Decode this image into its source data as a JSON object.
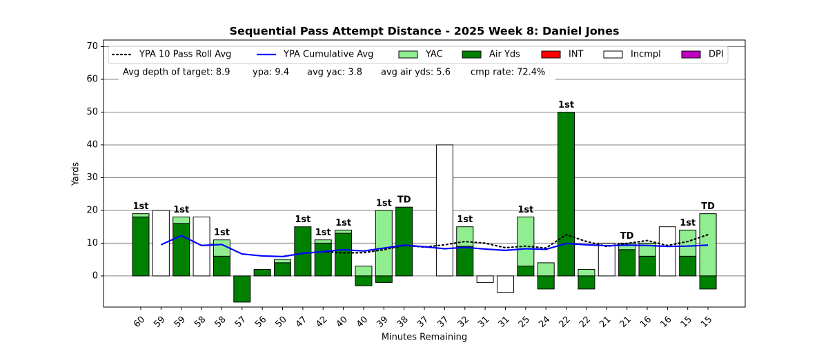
{
  "chart_data": {
    "type": "bar",
    "title": "Sequential Pass Attempt Distance - 2025 Week 8: Daniel Jones",
    "xlabel": "Minutes Remaining",
    "ylabel": "Yards",
    "categories": [
      "60",
      "59",
      "59",
      "58",
      "58",
      "57",
      "56",
      "50",
      "47",
      "42",
      "40",
      "40",
      "39",
      "38",
      "37",
      "37",
      "32",
      "31",
      "31",
      "25",
      "24",
      "22",
      "22",
      "21",
      "21",
      "16",
      "16",
      "15",
      "15"
    ],
    "series": [
      {
        "name": "YAC",
        "color": "#90ee90",
        "values": [
          1,
          null,
          2,
          null,
          5,
          0,
          null,
          1,
          null,
          1,
          1,
          3,
          20,
          null,
          null,
          null,
          6,
          null,
          null,
          15,
          4,
          null,
          2,
          null,
          2,
          4,
          null,
          8,
          19
        ]
      },
      {
        "name": "Air Yds",
        "color": "#008000",
        "values": [
          18,
          null,
          16,
          null,
          6,
          -8,
          2,
          4,
          15,
          10,
          13,
          -3,
          -2,
          21,
          0,
          null,
          9,
          null,
          null,
          3,
          -4,
          50,
          -4,
          null,
          8,
          6,
          null,
          6,
          -4
        ]
      },
      {
        "name": "INT",
        "color": "#ff0000",
        "values": [
          null,
          null,
          null,
          null,
          null,
          null,
          null,
          null,
          null,
          null,
          null,
          null,
          null,
          null,
          null,
          null,
          null,
          null,
          null,
          null,
          null,
          null,
          null,
          null,
          null,
          null,
          null,
          null,
          null
        ]
      },
      {
        "name": "Incmpl",
        "color": "#ffffff",
        "values": [
          null,
          20,
          null,
          18,
          null,
          null,
          null,
          null,
          null,
          null,
          null,
          null,
          null,
          null,
          null,
          40,
          null,
          -2,
          -5,
          null,
          null,
          null,
          null,
          10,
          null,
          null,
          15,
          null,
          null
        ]
      },
      {
        "name": "DPI",
        "color": "#bf00bf",
        "values": [
          null,
          null,
          null,
          null,
          null,
          null,
          null,
          null,
          null,
          null,
          null,
          null,
          null,
          null,
          null,
          null,
          null,
          null,
          null,
          null,
          null,
          null,
          null,
          null,
          null,
          null,
          null,
          null,
          null
        ]
      }
    ],
    "lines": [
      {
        "name": "YPA 10 Pass Roll Avg",
        "color": "#000000",
        "style": "dotted",
        "values": [
          null,
          null,
          null,
          null,
          null,
          null,
          null,
          null,
          null,
          7.4,
          7,
          7.1,
          8,
          9.3,
          8.8,
          9.5,
          10.5,
          10,
          8.6,
          9.1,
          8.5,
          12.6,
          10.5,
          9,
          9.9,
          10.8,
          9.3,
          10.5,
          12.6
        ]
      },
      {
        "name": "YPA Cumulative Avg",
        "color": "#0000ff",
        "style": "solid",
        "values": [
          null,
          9.5,
          12.3,
          9.3,
          9.6,
          6.7,
          6.1,
          5.9,
          6.9,
          7.4,
          8,
          7.6,
          8.5,
          9.4,
          8.9,
          8.3,
          8.7,
          8.2,
          7.8,
          8.3,
          8.1,
          9.9,
          9.5,
          9.2,
          9.4,
          9.3,
          9,
          9.1,
          9.4
        ]
      }
    ],
    "annotations": [
      "1st",
      null,
      "1st",
      null,
      "1st",
      null,
      null,
      null,
      "1st",
      "1st",
      "1st",
      null,
      "1st",
      "TD",
      null,
      null,
      "1st",
      null,
      null,
      "1st",
      null,
      "1st",
      null,
      null,
      "TD",
      null,
      null,
      "1st",
      "TD"
    ],
    "stats": [
      "Avg depth of target: 8.9",
      "ypa: 9.4",
      "avg yac: 3.8",
      "avg air yds: 5.6",
      "cmp rate: 72.4%"
    ],
    "ylim": [
      -9.5,
      72
    ],
    "yticks": [
      0,
      10,
      20,
      30,
      40,
      50,
      60,
      70
    ],
    "grid": true
  }
}
